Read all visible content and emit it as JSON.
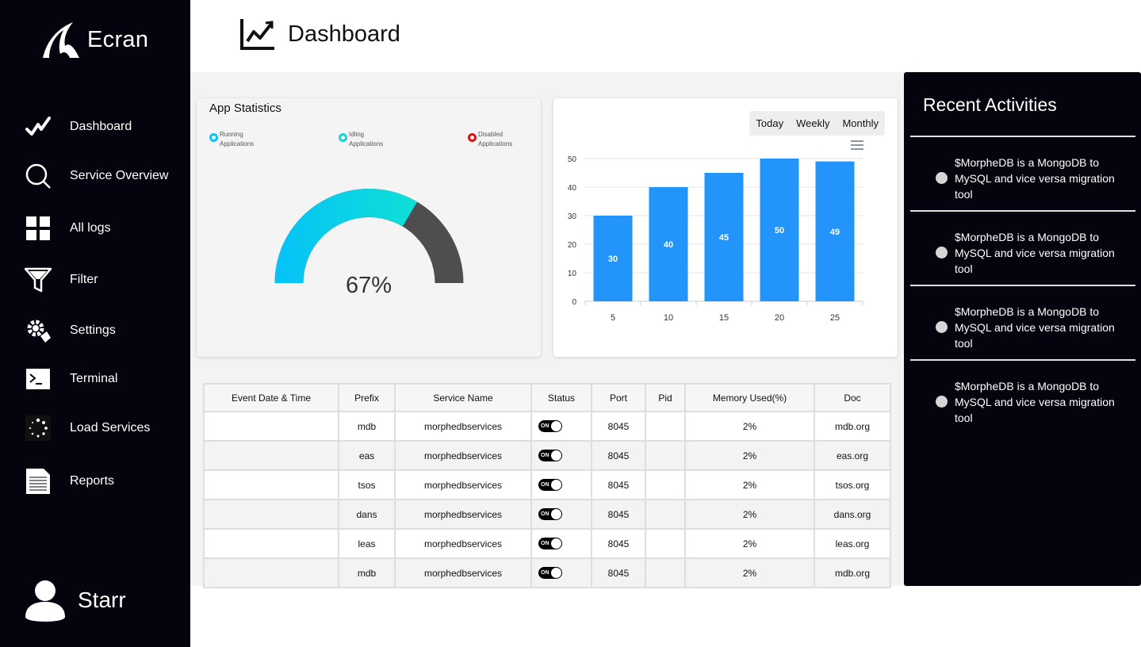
{
  "brand": {
    "name": "Ecran"
  },
  "nav": {
    "items": [
      {
        "label": "Dashboard",
        "icon": "trend-check-icon"
      },
      {
        "label": "Service Overview",
        "icon": "search-icon"
      },
      {
        "label": "All logs",
        "icon": "grid-icon"
      },
      {
        "label": "Filter",
        "icon": "filter-icon"
      },
      {
        "label": "Settings",
        "icon": "gear-icon"
      },
      {
        "label": "Terminal",
        "icon": "terminal-icon"
      },
      {
        "label": "Load Services",
        "icon": "loading-icon"
      },
      {
        "label": "Reports",
        "icon": "document-icon"
      }
    ]
  },
  "user": {
    "name": "Starr"
  },
  "header": {
    "title": "Dashboard"
  },
  "app_statistics": {
    "title": "App Statistics",
    "legend": [
      {
        "label": "Running Applications",
        "color": "#0bc3f5"
      },
      {
        "label": "Idling Applications",
        "color": "#1ad3d3"
      },
      {
        "label": "Disabled Applications",
        "color": "#e01010"
      }
    ],
    "gauge_value": "67%",
    "gauge_fraction": 0.67
  },
  "range_buttons": [
    "Today",
    "Weekly",
    "Monthly"
  ],
  "chart_data": {
    "type": "bar",
    "categories": [
      "5",
      "10",
      "15",
      "20",
      "25"
    ],
    "values": [
      30,
      40,
      45,
      50,
      49
    ],
    "ylim": [
      0,
      50
    ],
    "yticks": [
      "0",
      "10",
      "20",
      "30",
      "40",
      "50"
    ],
    "color": "#2394fa",
    "grid": true
  },
  "table": {
    "headers": [
      "Event Date & Time",
      "Prefix",
      "Service Name",
      "Status",
      "Port",
      "Pid",
      "Memory Used(%)",
      "Doc"
    ],
    "toggle_label": "ON",
    "rows": [
      {
        "event": "",
        "prefix": "mdb",
        "service": "morphedbservices",
        "port": "8045",
        "pid": "",
        "memory": "2%",
        "doc": "mdb.org"
      },
      {
        "event": "",
        "prefix": "eas",
        "service": "morphedbservices",
        "port": "8045",
        "pid": "",
        "memory": "2%",
        "doc": "eas.org"
      },
      {
        "event": "",
        "prefix": "tsos",
        "service": "morphedbservices",
        "port": "8045",
        "pid": "",
        "memory": "2%",
        "doc": "tsos.org"
      },
      {
        "event": "",
        "prefix": "dans",
        "service": "morphedbservices",
        "port": "8045",
        "pid": "",
        "memory": "2%",
        "doc": "dans.org"
      },
      {
        "event": "",
        "prefix": "leas",
        "service": "morphedbservices",
        "port": "8045",
        "pid": "",
        "memory": "2%",
        "doc": "leas.org"
      },
      {
        "event": "",
        "prefix": "mdb",
        "service": "morphedbservices",
        "port": "8045",
        "pid": "",
        "memory": "2%",
        "doc": "mdb.org"
      }
    ]
  },
  "activities": {
    "title": "Recent Activities",
    "items": [
      "$MorpheDB is a MongoDB to MySQL and vice versa migration tool",
      "$MorpheDB is a MongoDB to MySQL and vice versa migration tool",
      "$MorpheDB is a MongoDB to MySQL and vice versa migration tool",
      "$MorpheDB is a MongoDB to MySQL and vice versa migration tool"
    ]
  }
}
